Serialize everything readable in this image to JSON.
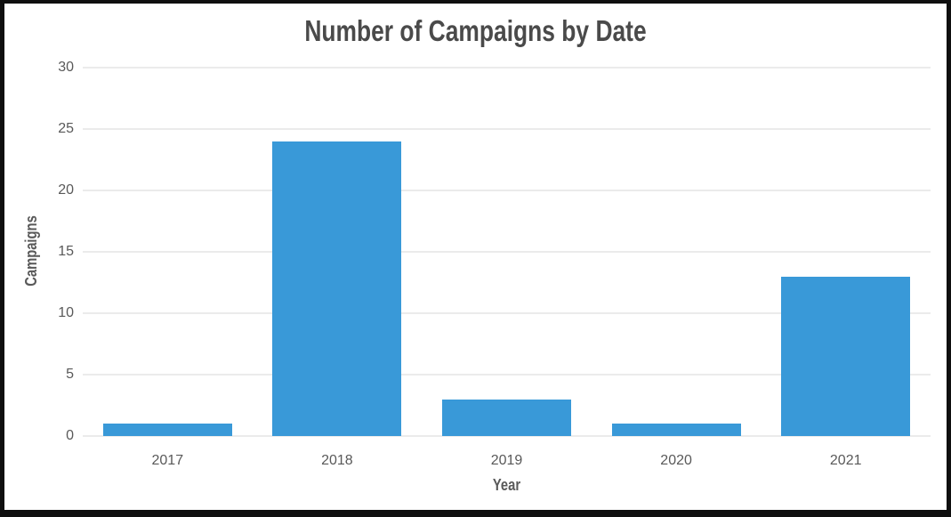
{
  "chart_data": {
    "type": "bar",
    "title": "Number of Campaigns by Date",
    "xlabel": "Year",
    "ylabel": "Campaigns",
    "categories": [
      "2017",
      "2018",
      "2019",
      "2020",
      "2021"
    ],
    "values": [
      1,
      24,
      3,
      1,
      13
    ],
    "ylim": [
      0,
      30
    ],
    "yticks": [
      0,
      5,
      10,
      15,
      20,
      25,
      30
    ],
    "grid": true,
    "legend": "none",
    "bar_color": "#3999d8",
    "tick_text_color": "#595959",
    "title_color": "#4a4a4a",
    "gridline_color": "#ebebeb",
    "frame_color": "#0f0f0f"
  }
}
